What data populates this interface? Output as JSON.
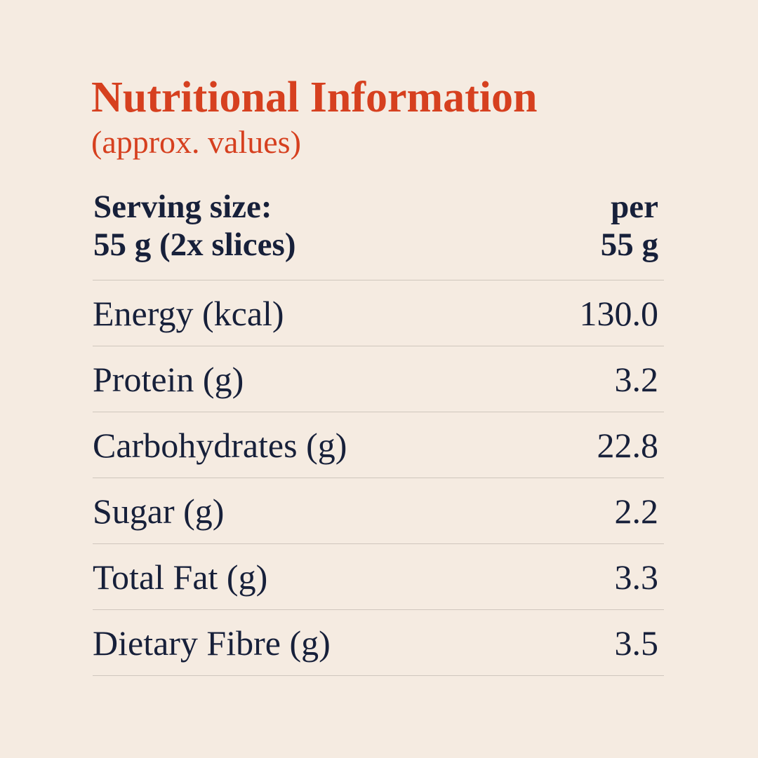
{
  "title": "Nutritional Information",
  "subtitle": "(approx. values)",
  "header": {
    "left": [
      "Serving size:",
      "55 g (2x slices)"
    ],
    "right": [
      "per",
      "55 g"
    ]
  },
  "table": {
    "rows": [
      [
        "Energy (kcal)",
        "130.0"
      ],
      [
        "Protein (g)",
        "3.2"
      ],
      [
        "Carbohydrates (g)",
        "22.8"
      ],
      [
        "Sugar (g)",
        "2.2"
      ],
      [
        "Total Fat (g)",
        "3.3"
      ],
      [
        "Dietary Fibre (g)",
        "3.5"
      ]
    ]
  }
}
